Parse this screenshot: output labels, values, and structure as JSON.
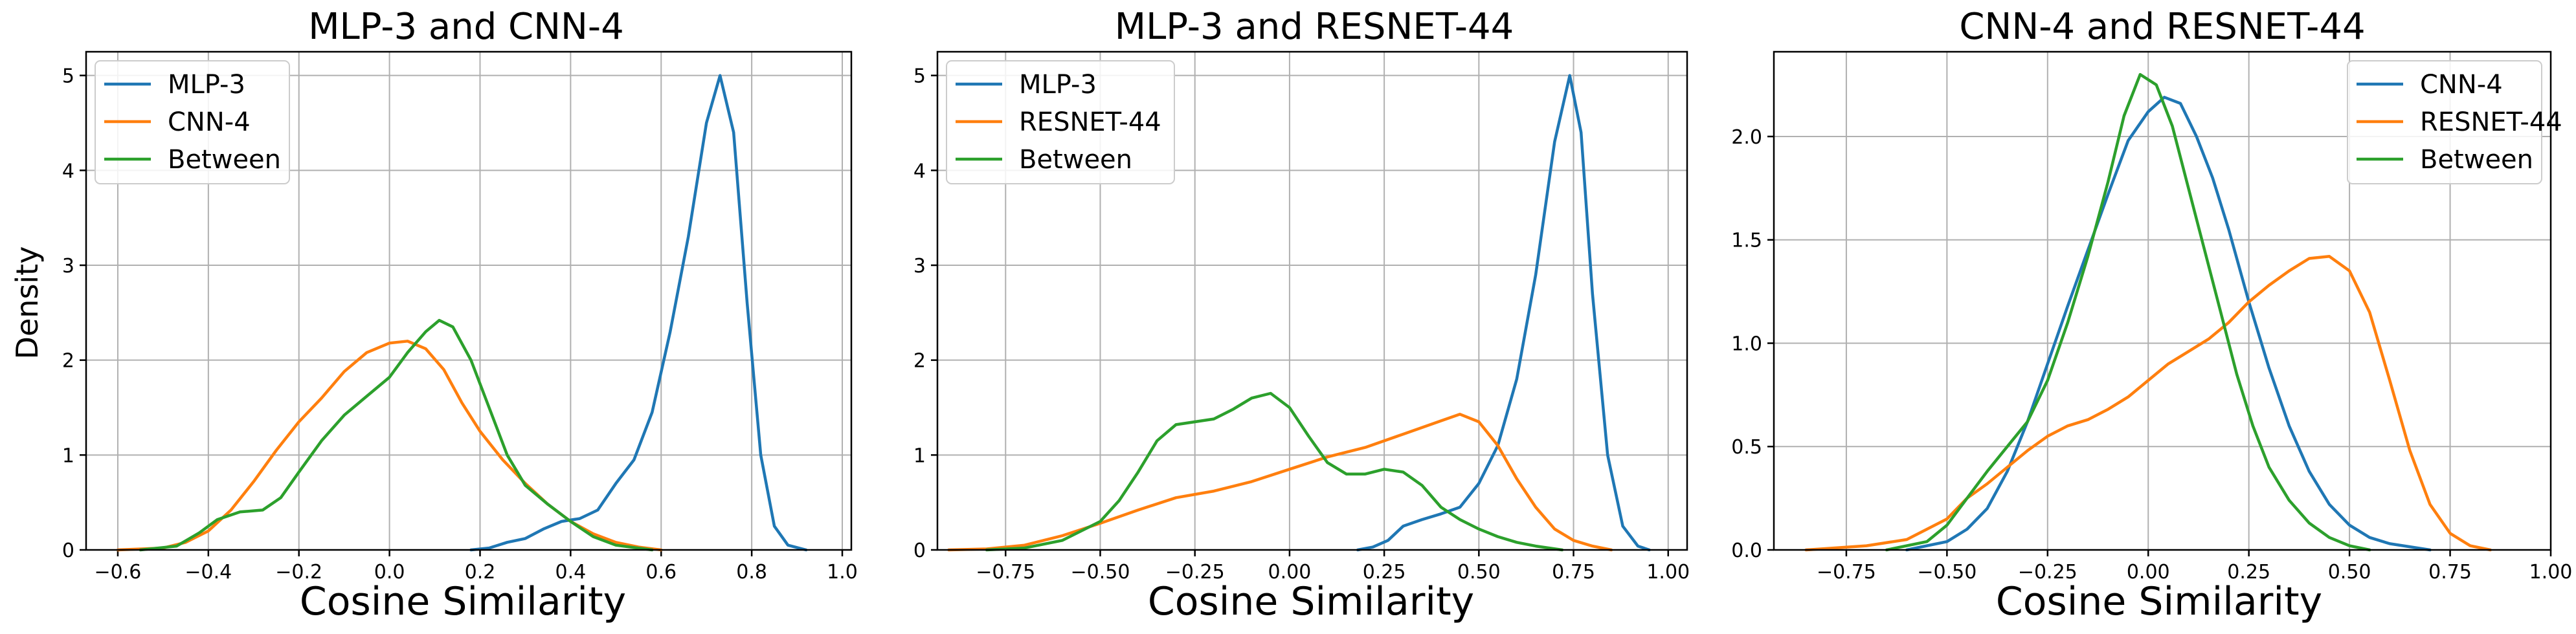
{
  "chart_data": [
    {
      "type": "line",
      "title": "MLP-3 and CNN-4",
      "xlabel": "Cosine Similarity",
      "ylabel": "Density",
      "xlim": [
        -0.67,
        1.02
      ],
      "ylim": [
        0,
        5.25
      ],
      "xticks": [
        -0.6,
        -0.4,
        -0.2,
        0.0,
        0.2,
        0.4,
        0.6,
        0.8,
        1.0
      ],
      "xtick_labels": [
        "−0.6",
        "−0.4",
        "−0.2",
        "0.0",
        "0.2",
        "0.4",
        "0.6",
        "0.8",
        "1.0"
      ],
      "yticks": [
        0,
        1,
        2,
        3,
        4,
        5
      ],
      "ytick_labels": [
        "0",
        "1",
        "2",
        "3",
        "4",
        "5"
      ],
      "grid": true,
      "legend_position": "upper-left",
      "series": [
        {
          "name": "MLP-3",
          "color": "#1f77b4",
          "points": [
            [
              0.18,
              0
            ],
            [
              0.22,
              0.02
            ],
            [
              0.26,
              0.08
            ],
            [
              0.3,
              0.12
            ],
            [
              0.34,
              0.22
            ],
            [
              0.38,
              0.3
            ],
            [
              0.42,
              0.33
            ],
            [
              0.46,
              0.42
            ],
            [
              0.5,
              0.7
            ],
            [
              0.54,
              0.95
            ],
            [
              0.58,
              1.45
            ],
            [
              0.62,
              2.3
            ],
            [
              0.66,
              3.3
            ],
            [
              0.7,
              4.5
            ],
            [
              0.73,
              5.0
            ],
            [
              0.76,
              4.4
            ],
            [
              0.79,
              2.6
            ],
            [
              0.82,
              1.0
            ],
            [
              0.85,
              0.25
            ],
            [
              0.88,
              0.05
            ],
            [
              0.92,
              0
            ]
          ]
        },
        {
          "name": "CNN-4",
          "color": "#ff7f0e",
          "points": [
            [
              -0.6,
              0
            ],
            [
              -0.5,
              0.02
            ],
            [
              -0.45,
              0.08
            ],
            [
              -0.4,
              0.2
            ],
            [
              -0.35,
              0.42
            ],
            [
              -0.3,
              0.72
            ],
            [
              -0.25,
              1.05
            ],
            [
              -0.2,
              1.35
            ],
            [
              -0.15,
              1.6
            ],
            [
              -0.1,
              1.88
            ],
            [
              -0.05,
              2.08
            ],
            [
              0.0,
              2.18
            ],
            [
              0.04,
              2.2
            ],
            [
              0.08,
              2.12
            ],
            [
              0.12,
              1.9
            ],
            [
              0.16,
              1.55
            ],
            [
              0.2,
              1.25
            ],
            [
              0.25,
              0.95
            ],
            [
              0.3,
              0.7
            ],
            [
              0.35,
              0.48
            ],
            [
              0.4,
              0.3
            ],
            [
              0.45,
              0.17
            ],
            [
              0.5,
              0.08
            ],
            [
              0.55,
              0.03
            ],
            [
              0.6,
              0
            ]
          ]
        },
        {
          "name": "Between",
          "color": "#2ca02c",
          "points": [
            [
              -0.55,
              0
            ],
            [
              -0.47,
              0.04
            ],
            [
              -0.42,
              0.18
            ],
            [
              -0.38,
              0.32
            ],
            [
              -0.33,
              0.4
            ],
            [
              -0.28,
              0.42
            ],
            [
              -0.24,
              0.55
            ],
            [
              -0.2,
              0.82
            ],
            [
              -0.15,
              1.15
            ],
            [
              -0.1,
              1.42
            ],
            [
              -0.05,
              1.62
            ],
            [
              0.0,
              1.82
            ],
            [
              0.04,
              2.08
            ],
            [
              0.08,
              2.3
            ],
            [
              0.11,
              2.42
            ],
            [
              0.14,
              2.35
            ],
            [
              0.18,
              2.0
            ],
            [
              0.22,
              1.5
            ],
            [
              0.26,
              1.0
            ],
            [
              0.3,
              0.68
            ],
            [
              0.35,
              0.48
            ],
            [
              0.4,
              0.3
            ],
            [
              0.45,
              0.14
            ],
            [
              0.5,
              0.05
            ],
            [
              0.58,
              0
            ]
          ]
        }
      ]
    },
    {
      "type": "line",
      "title": "MLP-3 and RESNET-44",
      "xlabel": "Cosine Similarity",
      "ylabel": "",
      "xlim": [
        -0.93,
        1.05
      ],
      "ylim": [
        0,
        5.25
      ],
      "xticks": [
        -0.75,
        -0.5,
        -0.25,
        0.0,
        0.25,
        0.5,
        0.75,
        1.0
      ],
      "xtick_labels": [
        "−0.75",
        "−0.50",
        "−0.25",
        "0.00",
        "0.25",
        "0.50",
        "0.75",
        "1.00"
      ],
      "yticks": [
        0,
        1,
        2,
        3,
        4,
        5
      ],
      "ytick_labels": [
        "0",
        "1",
        "2",
        "3",
        "4",
        "5"
      ],
      "grid": true,
      "legend_position": "upper-left",
      "series": [
        {
          "name": "MLP-3",
          "color": "#1f77b4",
          "points": [
            [
              0.18,
              0
            ],
            [
              0.22,
              0.03
            ],
            [
              0.26,
              0.1
            ],
            [
              0.3,
              0.25
            ],
            [
              0.35,
              0.32
            ],
            [
              0.4,
              0.38
            ],
            [
              0.45,
              0.45
            ],
            [
              0.5,
              0.7
            ],
            [
              0.55,
              1.1
            ],
            [
              0.6,
              1.8
            ],
            [
              0.65,
              2.9
            ],
            [
              0.7,
              4.3
            ],
            [
              0.74,
              5.0
            ],
            [
              0.77,
              4.4
            ],
            [
              0.8,
              2.7
            ],
            [
              0.84,
              1.0
            ],
            [
              0.88,
              0.25
            ],
            [
              0.92,
              0.04
            ],
            [
              0.95,
              0
            ]
          ]
        },
        {
          "name": "RESNET-44",
          "color": "#ff7f0e",
          "points": [
            [
              -0.9,
              0
            ],
            [
              -0.8,
              0.01
            ],
            [
              -0.7,
              0.05
            ],
            [
              -0.6,
              0.15
            ],
            [
              -0.5,
              0.28
            ],
            [
              -0.4,
              0.42
            ],
            [
              -0.3,
              0.55
            ],
            [
              -0.2,
              0.62
            ],
            [
              -0.1,
              0.72
            ],
            [
              0.0,
              0.85
            ],
            [
              0.1,
              0.98
            ],
            [
              0.2,
              1.08
            ],
            [
              0.3,
              1.22
            ],
            [
              0.4,
              1.36
            ],
            [
              0.45,
              1.43
            ],
            [
              0.5,
              1.35
            ],
            [
              0.55,
              1.1
            ],
            [
              0.6,
              0.75
            ],
            [
              0.65,
              0.45
            ],
            [
              0.7,
              0.22
            ],
            [
              0.75,
              0.1
            ],
            [
              0.8,
              0.04
            ],
            [
              0.85,
              0
            ]
          ]
        },
        {
          "name": "Between",
          "color": "#2ca02c",
          "points": [
            [
              -0.8,
              0
            ],
            [
              -0.7,
              0.02
            ],
            [
              -0.6,
              0.1
            ],
            [
              -0.5,
              0.3
            ],
            [
              -0.45,
              0.52
            ],
            [
              -0.4,
              0.82
            ],
            [
              -0.35,
              1.15
            ],
            [
              -0.3,
              1.32
            ],
            [
              -0.25,
              1.35
            ],
            [
              -0.2,
              1.38
            ],
            [
              -0.15,
              1.48
            ],
            [
              -0.1,
              1.6
            ],
            [
              -0.05,
              1.65
            ],
            [
              0.0,
              1.5
            ],
            [
              0.05,
              1.2
            ],
            [
              0.1,
              0.92
            ],
            [
              0.15,
              0.8
            ],
            [
              0.2,
              0.8
            ],
            [
              0.25,
              0.85
            ],
            [
              0.3,
              0.82
            ],
            [
              0.35,
              0.68
            ],
            [
              0.4,
              0.45
            ],
            [
              0.45,
              0.32
            ],
            [
              0.5,
              0.22
            ],
            [
              0.55,
              0.14
            ],
            [
              0.6,
              0.08
            ],
            [
              0.65,
              0.04
            ],
            [
              0.72,
              0
            ]
          ]
        }
      ]
    },
    {
      "type": "line",
      "title": "CNN-4 and RESNET-44",
      "xlabel": "Cosine Similarity",
      "ylabel": "",
      "xlim": [
        -0.93,
        1.0
      ],
      "ylim": [
        0,
        2.41
      ],
      "xticks": [
        -0.75,
        -0.5,
        -0.25,
        0.0,
        0.25,
        0.5,
        0.75,
        1.0
      ],
      "xtick_labels": [
        "−0.75",
        "−0.50",
        "−0.25",
        "0.00",
        "0.25",
        "0.50",
        "0.75",
        "1.00"
      ],
      "yticks": [
        0,
        0.5,
        1.0,
        1.5,
        2.0
      ],
      "ytick_labels": [
        "0.0",
        "0.5",
        "1.0",
        "1.5",
        "2.0"
      ],
      "grid": true,
      "legend_position": "upper-right",
      "series": [
        {
          "name": "CNN-4",
          "color": "#1f77b4",
          "points": [
            [
              -0.6,
              0
            ],
            [
              -0.5,
              0.04
            ],
            [
              -0.45,
              0.1
            ],
            [
              -0.4,
              0.2
            ],
            [
              -0.35,
              0.38
            ],
            [
              -0.3,
              0.62
            ],
            [
              -0.25,
              0.9
            ],
            [
              -0.2,
              1.18
            ],
            [
              -0.15,
              1.45
            ],
            [
              -0.1,
              1.72
            ],
            [
              -0.05,
              1.98
            ],
            [
              0.0,
              2.12
            ],
            [
              0.04,
              2.19
            ],
            [
              0.08,
              2.16
            ],
            [
              0.12,
              2.0
            ],
            [
              0.16,
              1.8
            ],
            [
              0.2,
              1.55
            ],
            [
              0.25,
              1.2
            ],
            [
              0.3,
              0.88
            ],
            [
              0.35,
              0.6
            ],
            [
              0.4,
              0.38
            ],
            [
              0.45,
              0.22
            ],
            [
              0.5,
              0.12
            ],
            [
              0.55,
              0.06
            ],
            [
              0.6,
              0.03
            ],
            [
              0.7,
              0
            ]
          ]
        },
        {
          "name": "RESNET-44",
          "color": "#ff7f0e",
          "points": [
            [
              -0.85,
              0
            ],
            [
              -0.7,
              0.02
            ],
            [
              -0.6,
              0.05
            ],
            [
              -0.5,
              0.15
            ],
            [
              -0.45,
              0.25
            ],
            [
              -0.4,
              0.32
            ],
            [
              -0.35,
              0.4
            ],
            [
              -0.3,
              0.48
            ],
            [
              -0.25,
              0.55
            ],
            [
              -0.2,
              0.6
            ],
            [
              -0.15,
              0.63
            ],
            [
              -0.1,
              0.68
            ],
            [
              -0.05,
              0.74
            ],
            [
              0.0,
              0.82
            ],
            [
              0.05,
              0.9
            ],
            [
              0.1,
              0.96
            ],
            [
              0.15,
              1.02
            ],
            [
              0.2,
              1.1
            ],
            [
              0.25,
              1.2
            ],
            [
              0.3,
              1.28
            ],
            [
              0.35,
              1.35
            ],
            [
              0.4,
              1.41
            ],
            [
              0.45,
              1.42
            ],
            [
              0.5,
              1.35
            ],
            [
              0.55,
              1.15
            ],
            [
              0.6,
              0.82
            ],
            [
              0.65,
              0.48
            ],
            [
              0.7,
              0.22
            ],
            [
              0.75,
              0.08
            ],
            [
              0.8,
              0.02
            ],
            [
              0.85,
              0
            ]
          ]
        },
        {
          "name": "Between",
          "color": "#2ca02c",
          "points": [
            [
              -0.65,
              0
            ],
            [
              -0.55,
              0.04
            ],
            [
              -0.5,
              0.12
            ],
            [
              -0.45,
              0.25
            ],
            [
              -0.4,
              0.38
            ],
            [
              -0.35,
              0.5
            ],
            [
              -0.3,
              0.62
            ],
            [
              -0.25,
              0.82
            ],
            [
              -0.2,
              1.1
            ],
            [
              -0.15,
              1.42
            ],
            [
              -0.1,
              1.78
            ],
            [
              -0.06,
              2.1
            ],
            [
              -0.02,
              2.3
            ],
            [
              0.02,
              2.25
            ],
            [
              0.06,
              2.05
            ],
            [
              0.1,
              1.75
            ],
            [
              0.14,
              1.45
            ],
            [
              0.18,
              1.15
            ],
            [
              0.22,
              0.85
            ],
            [
              0.26,
              0.6
            ],
            [
              0.3,
              0.4
            ],
            [
              0.35,
              0.24
            ],
            [
              0.4,
              0.13
            ],
            [
              0.45,
              0.06
            ],
            [
              0.5,
              0.02
            ],
            [
              0.55,
              0
            ]
          ]
        }
      ]
    }
  ]
}
